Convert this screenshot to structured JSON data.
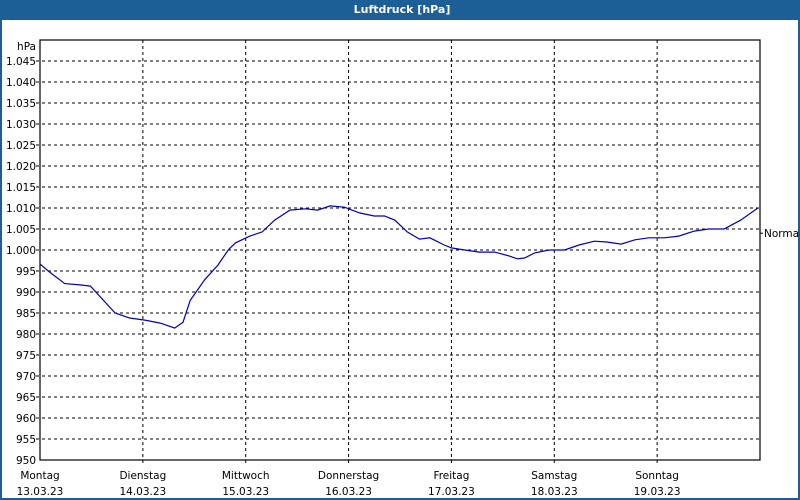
{
  "window": {
    "title": "Luftdruck [hPa]"
  },
  "colors": {
    "titlebar": "#1c5f96",
    "line": "#0000b4",
    "grid": "#000000"
  },
  "chart_data": {
    "type": "line",
    "title": "Luftdruck [hPa]",
    "ylabel": "hPa",
    "xlabel": "",
    "ylim": [
      950,
      1050
    ],
    "yticks": [
      950,
      955,
      960,
      965,
      970,
      975,
      980,
      985,
      990,
      995,
      1000,
      1005,
      1010,
      1015,
      1020,
      1025,
      1030,
      1035,
      1040,
      1045
    ],
    "ytick_labels": [
      "950",
      "955",
      "960",
      "965",
      "970",
      "975",
      "980",
      "985",
      "990",
      "995",
      "1.000",
      "1.005",
      "1.010",
      "1.015",
      "1.020",
      "1.025",
      "1.030",
      "1.035",
      "1.040",
      "1.045"
    ],
    "xticks": [
      {
        "day": "Montag",
        "date": "13.03.23"
      },
      {
        "day": "Dienstag",
        "date": "14.03.23"
      },
      {
        "day": "Mittwoch",
        "date": "15.03.23"
      },
      {
        "day": "Donnerstag",
        "date": "16.03.23"
      },
      {
        "day": "Freitag",
        "date": "17.03.23"
      },
      {
        "day": "Samstag",
        "date": "18.03.23"
      },
      {
        "day": "Sonntag",
        "date": "19.03.23"
      }
    ],
    "grid": true,
    "reference_label": "Normal",
    "reference_value": 1004,
    "series": [
      {
        "name": "Luftdruck",
        "x_days": [
          0,
          0.08,
          0.24,
          0.39,
          0.49,
          0.73,
          0.87,
          1.02,
          1.17,
          1.31,
          1.39,
          1.46,
          1.6,
          1.73,
          1.83,
          1.9,
          2.04,
          2.16,
          2.28,
          2.43,
          2.58,
          2.7,
          2.82,
          2.96,
          3.11,
          3.25,
          3.35,
          3.45,
          3.57,
          3.69,
          3.79,
          3.93,
          4.0,
          4.13,
          4.27,
          4.42,
          4.56,
          4.64,
          4.71,
          4.81,
          4.95,
          5.1,
          5.24,
          5.39,
          5.51,
          5.65,
          5.78,
          5.92,
          6.07,
          6.21,
          6.36,
          6.5,
          6.65,
          6.81,
          6.98
        ],
        "values": [
          996.7,
          995.0,
          992.0,
          991.7,
          991.4,
          985.0,
          983.8,
          983.3,
          982.6,
          981.4,
          982.8,
          988.0,
          992.9,
          996.4,
          1000.0,
          1001.7,
          1003.3,
          1004.3,
          1007.1,
          1009.5,
          1009.8,
          1009.5,
          1010.5,
          1010.2,
          1008.8,
          1008.1,
          1008.1,
          1007.1,
          1004.3,
          1002.6,
          1002.9,
          1001.2,
          1000.5,
          1000.0,
          999.5,
          999.5,
          998.6,
          997.9,
          998.1,
          999.3,
          1000.0,
          1000.0,
          1001.2,
          1002.1,
          1001.9,
          1001.4,
          1002.4,
          1002.9,
          1002.9,
          1003.3,
          1004.5,
          1005.0,
          1005.0,
          1007.1,
          1010.0
        ]
      }
    ]
  }
}
